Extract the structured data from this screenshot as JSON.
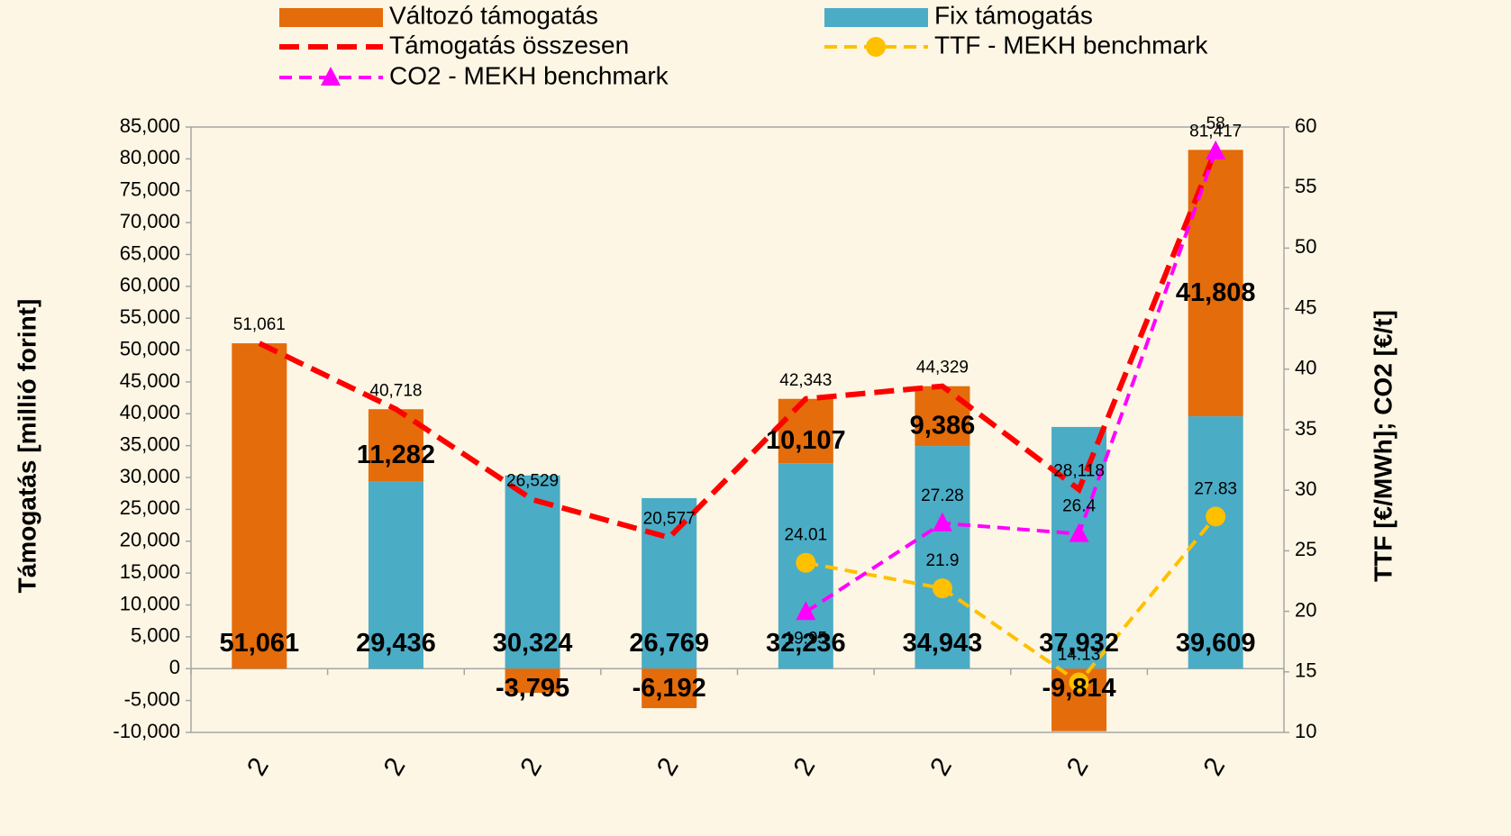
{
  "chart_data": {
    "type": "bar",
    "categories": [
      "2",
      "2",
      "2",
      "2",
      "2",
      "2",
      "2",
      "2"
    ],
    "y_axis_label": "Támogatás [millió forint]",
    "y2_axis_label": "TTF [€/MWh]; CO2 [€/t]",
    "ylim": [
      -10000,
      85000
    ],
    "yticks": [
      {
        "value": -10000,
        "label": "-10,000"
      },
      {
        "value": -5000,
        "label": "-5,000"
      },
      0,
      {
        "value": 5000,
        "label": "5,000"
      },
      {
        "value": 10000,
        "label": "10,000"
      },
      {
        "value": 15000,
        "label": "15,000"
      },
      {
        "value": 20000,
        "label": "20,000"
      },
      {
        "value": 25000,
        "label": "25,000"
      },
      {
        "value": 30000,
        "label": "30,000"
      },
      {
        "value": 35000,
        "label": "35,000"
      },
      {
        "value": 40000,
        "label": "40,000"
      },
      {
        "value": 45000,
        "label": "45,000"
      },
      {
        "value": 50000,
        "label": "50,000"
      },
      {
        "value": 55000,
        "label": "55,000"
      },
      {
        "value": 60000,
        "label": "60,000"
      },
      {
        "value": 65000,
        "label": "65,000"
      },
      {
        "value": 70000,
        "label": "70,000"
      },
      {
        "value": 75000,
        "label": "75,000"
      },
      {
        "value": 80000,
        "label": "80,000"
      },
      {
        "value": 85000,
        "label": "85,000"
      }
    ],
    "y2lim": [
      10,
      60
    ],
    "y2ticks": [
      10,
      15,
      20,
      25,
      30,
      35,
      40,
      45,
      50,
      55,
      60
    ],
    "series": [
      {
        "name": "Változó támogatás",
        "kind": "bar",
        "color": "#e46c0a",
        "values": [
          null,
          11282,
          -3795,
          -6192,
          10107,
          9386,
          -9814,
          41808
        ],
        "value_labels": [
          null,
          "11,282",
          "-3,795",
          "-6,192",
          "10,107",
          "9,386",
          "-9,814",
          "41,808"
        ]
      },
      {
        "name": "Fix támogatás",
        "kind": "bar",
        "color": "#4bacc6",
        "point_colors": [
          "#e46c0a",
          null,
          null,
          null,
          null,
          null,
          null,
          null
        ],
        "values": [
          51061,
          29436,
          30324,
          26769,
          32236,
          34943,
          37932,
          39609
        ],
        "value_labels": [
          "51,061",
          "29,436",
          "30,324",
          "26,769",
          "32,236",
          "34,943",
          "37,932",
          "39,609"
        ]
      },
      {
        "name": "Támogatás összesen",
        "kind": "line",
        "color": "#ff0000",
        "values": [
          51061,
          40718,
          26529,
          20577,
          42343,
          44329,
          28118,
          81417
        ],
        "value_labels": [
          "51,061",
          "40,718",
          "26,529",
          "20,577",
          "42,343",
          "44,329",
          "28,118",
          "81,417"
        ]
      },
      {
        "name": "TTF - MEKH benchmark",
        "kind": "line",
        "axis": "y2",
        "marker": "circle",
        "color": "#ffc000",
        "values": [
          null,
          null,
          null,
          null,
          24.01,
          21.9,
          14.13,
          27.83
        ]
      },
      {
        "name": "CO2 - MEKH benchmark",
        "kind": "line",
        "axis": "y2",
        "marker": "triangle",
        "color": "#ff00ff",
        "values": [
          null,
          null,
          null,
          null,
          19.95,
          27.28,
          26.4,
          58
        ]
      }
    ]
  }
}
